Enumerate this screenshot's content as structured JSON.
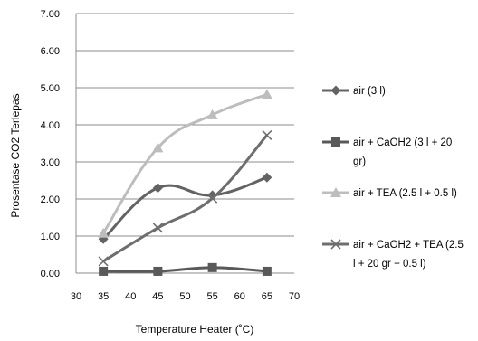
{
  "chart_data": {
    "type": "line",
    "title": "",
    "xlabel": "Temperature Heater (˚C)",
    "ylabel": "Prosentase CO2 Terlepas",
    "xlim": [
      30,
      70
    ],
    "ylim": [
      0,
      7
    ],
    "x_ticks": [
      "30",
      "35",
      "40",
      "45",
      "50",
      "55",
      "60",
      "65",
      "70"
    ],
    "y_ticks": [
      "0.00",
      "1.00",
      "2.00",
      "3.00",
      "4.00",
      "5.00",
      "6.00",
      "7.00"
    ],
    "x": [
      35,
      45,
      55,
      65
    ],
    "grid": "horizontal",
    "legend_position": "right",
    "series": [
      {
        "name": "air (3 l)",
        "legend_lines": [
          "air (3 l)"
        ],
        "values": [
          0.92,
          2.3,
          2.1,
          2.58
        ],
        "marker": "diamond",
        "color": "#636363"
      },
      {
        "name": "air + CaOH2 (3 l + 20 gr)",
        "legend_lines": [
          "air + CaOH2 (3 l + 20",
          "gr)"
        ],
        "values": [
          0.05,
          0.05,
          0.15,
          0.05
        ],
        "marker": "square",
        "color": "#595959"
      },
      {
        "name": "air + TEA (2.5 l + 0.5 l)",
        "legend_lines": [
          "air + TEA (2.5 l + 0.5 l)"
        ],
        "values": [
          1.08,
          3.38,
          4.27,
          4.82
        ],
        "marker": "triangle",
        "color": "#bdbdbd"
      },
      {
        "name": "air + CaOH2 + TEA (2.5 l + 20 gr + 0.5 l)",
        "legend_lines": [
          "air + CaOH2 + TEA (2.5",
          "l + 20 gr + 0.5 l)"
        ],
        "values": [
          0.32,
          1.22,
          2.02,
          3.72
        ],
        "marker": "x",
        "color": "#6e6e6e"
      }
    ]
  }
}
